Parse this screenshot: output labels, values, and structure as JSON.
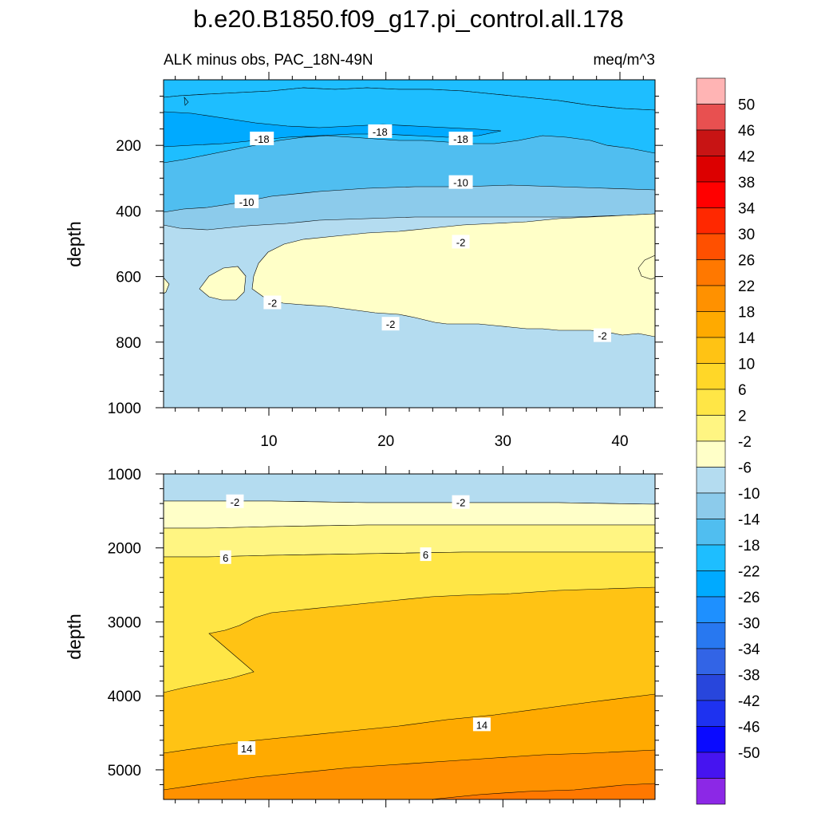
{
  "title": "b.e20.B1850.f09_g17.pi_control.all.178",
  "subtitle_left": "ALK minus obs, PAC_18N-49N",
  "subtitle_right": "meq/m^3",
  "chart_data": [
    {
      "type": "contour",
      "panel": "upper",
      "title": "ALK minus obs, PAC_18N-49N",
      "units": "meq/m^3",
      "xlabel": "",
      "ylabel": "depth",
      "xlim": [
        1,
        43
      ],
      "ylim": [
        1000,
        0
      ],
      "xticks": [
        10,
        20,
        30,
        40
      ],
      "yticks": [
        200,
        400,
        600,
        800,
        1000
      ],
      "contour_labels": [
        {
          "value": "-18",
          "x": 9.4,
          "y": 180
        },
        {
          "value": "-18",
          "x": 19.5,
          "y": 158
        },
        {
          "value": "-18",
          "x": 26.4,
          "y": 180
        },
        {
          "value": "-10",
          "x": 8.1,
          "y": 372
        },
        {
          "value": "-10",
          "x": 26.4,
          "y": 313
        },
        {
          "value": "-2",
          "x": 26.4,
          "y": 495
        },
        {
          "value": "-2",
          "x": 10.3,
          "y": 680
        },
        {
          "value": "-2",
          "x": 20.4,
          "y": 745
        },
        {
          "value": "-2",
          "x": 38.5,
          "y": 780
        }
      ]
    },
    {
      "type": "contour",
      "panel": "lower",
      "xlabel": "",
      "ylabel": "depth",
      "xlim": [
        1,
        43
      ],
      "ylim": [
        5400,
        1000
      ],
      "yticks": [
        1000,
        2000,
        3000,
        4000,
        5000
      ],
      "contour_labels": [
        {
          "value": "-2",
          "x": 7.1,
          "y": 1375
        },
        {
          "value": "-2",
          "x": 26.4,
          "y": 1385
        },
        {
          "value": "6",
          "x": 6.3,
          "y": 2130
        },
        {
          "value": "6",
          "x": 23.4,
          "y": 2090
        },
        {
          "value": "14",
          "x": 8.1,
          "y": 4710
        },
        {
          "value": "14",
          "x": 28.2,
          "y": 4390
        }
      ]
    }
  ],
  "colorbar": {
    "labels": [
      "50",
      "46",
      "42",
      "38",
      "34",
      "30",
      "26",
      "22",
      "18",
      "14",
      "10",
      "6",
      "2",
      "-2",
      "-6",
      "-10",
      "-14",
      "-18",
      "-22",
      "-26",
      "-30",
      "-34",
      "-38",
      "-42",
      "-46",
      "-50"
    ],
    "colors": [
      "#FFB4B4",
      "#E85050",
      "#C81414",
      "#DC0000",
      "#FF0000",
      "#FF2800",
      "#FF5000",
      "#FF7800",
      "#FF9100",
      "#FFAA00",
      "#FFC314",
      "#FFD728",
      "#FFE646",
      "#FFF582",
      "#FFFFC8",
      "#B4DCF0",
      "#8CCBEB",
      "#50BEF0",
      "#1EBEFF",
      "#00AAFF",
      "#1E90FF",
      "#2878F0",
      "#3264E6",
      "#2846DC",
      "#1E32F0",
      "#0A0AFF",
      "#4614F0",
      "#8C28E6"
    ]
  },
  "region_colors": {
    "m2_2": "#FFFFC8",
    "m6_2": "#B4DCF0",
    "m10_6": "#8CCBEB",
    "m14_10": "#50BEF0",
    "m18_14": "#1EBEFF",
    "m22_18": "#00AAFF",
    "p2_6": "#FFF582",
    "p6_10": "#FFE646",
    "p10_14": "#FFC314",
    "p14_18": "#FFAA00",
    "p18_22": "#FF9100",
    "p22_26": "#FF7800"
  }
}
